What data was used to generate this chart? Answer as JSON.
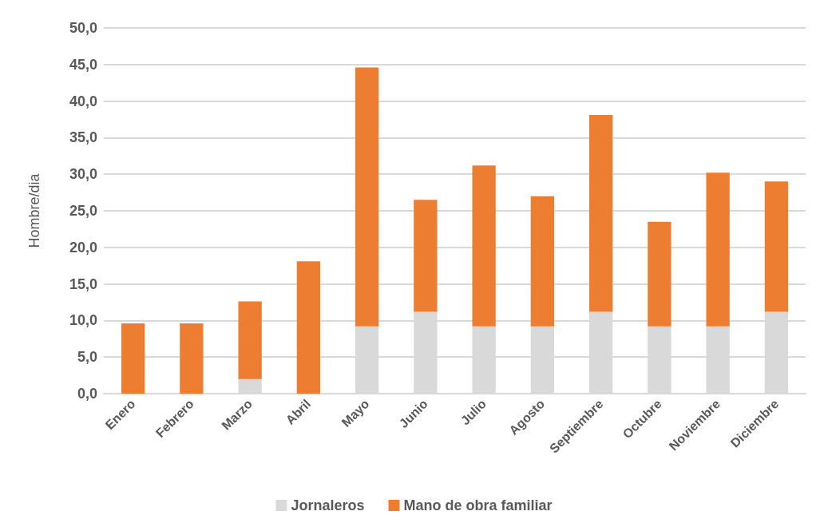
{
  "chart_data": {
    "type": "bar",
    "stacked": true,
    "ylabel": "Hombre/dia",
    "categories": [
      "Enero",
      "Febrero",
      "Marzo",
      "Abril",
      "Mayo",
      "Junio",
      "Julio",
      "Agosto",
      "Septiembre",
      "Octubre",
      "Noviembre",
      "Diciembre"
    ],
    "series": [
      {
        "name": "Jornaleros",
        "color": "#d9d9d9",
        "values": [
          0,
          0,
          2.0,
          0,
          9.2,
          11.2,
          9.2,
          9.2,
          11.2,
          9.2,
          9.2,
          11.2
        ]
      },
      {
        "name": "Mano de obra familiar",
        "color": "#ed7d31",
        "values": [
          9.6,
          9.6,
          10.6,
          18.1,
          35.4,
          15.3,
          22.0,
          17.8,
          26.9,
          14.3,
          21.0,
          17.8
        ]
      }
    ],
    "ylim": [
      0,
      50
    ],
    "yticks": [
      {
        "value": 0,
        "label": "0,0"
      },
      {
        "value": 5,
        "label": "5,0"
      },
      {
        "value": 10,
        "label": "10,0"
      },
      {
        "value": 15,
        "label": "15,0"
      },
      {
        "value": 20,
        "label": "20,0"
      },
      {
        "value": 25,
        "label": "25,0"
      },
      {
        "value": 30,
        "label": "30,0"
      },
      {
        "value": 35,
        "label": "35,0"
      },
      {
        "value": 40,
        "label": "40,0"
      },
      {
        "value": 45,
        "label": "45,0"
      },
      {
        "value": 50,
        "label": "50,0"
      }
    ],
    "grid": "y",
    "legend": "bottom"
  }
}
